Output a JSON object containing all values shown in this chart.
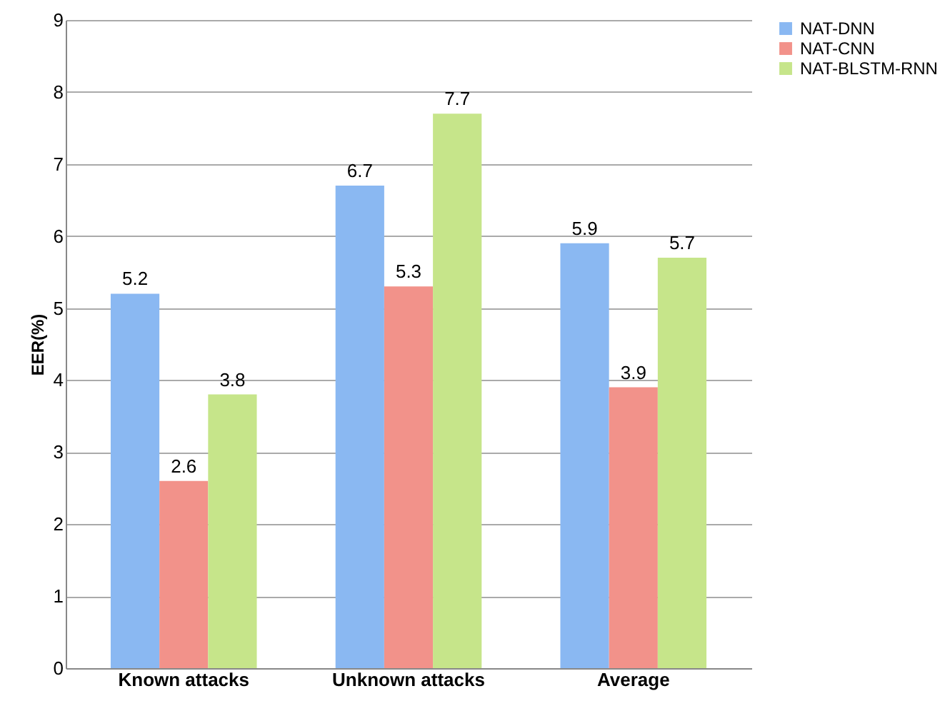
{
  "chart_data": {
    "type": "bar",
    "ylabel": "EER(%)",
    "categories": [
      "Known attacks",
      "Unknown attacks",
      "Average"
    ],
    "series": [
      {
        "name": "NAT-DNN",
        "color": "#8ab8f2",
        "values": [
          5.2,
          6.7,
          5.9
        ]
      },
      {
        "name": "NAT-CNN",
        "color": "#f2928a",
        "values": [
          2.6,
          5.3,
          3.9
        ]
      },
      {
        "name": "NAT-BLSTM-RNN",
        "color": "#c6e58a",
        "values": [
          3.8,
          7.7,
          5.7
        ]
      }
    ],
    "ylim": [
      0,
      9
    ],
    "yticks": [
      0,
      1,
      2,
      3,
      4,
      5,
      6,
      7,
      8,
      9
    ],
    "grid": "y",
    "legend": "right",
    "data_labels": true
  }
}
